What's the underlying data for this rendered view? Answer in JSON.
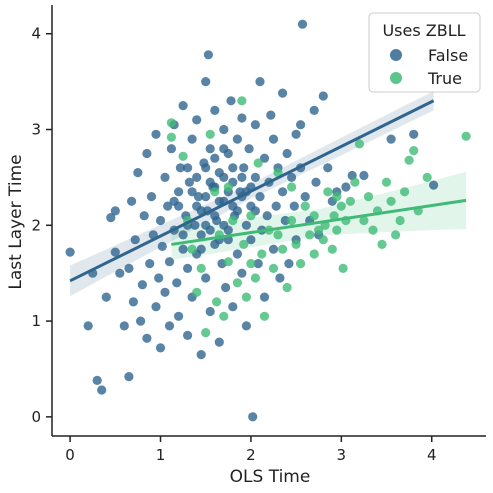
{
  "chart_data": {
    "type": "scatter",
    "title": "",
    "xlabel": "OLS  Time",
    "ylabel": "Last Layer Time",
    "xlim": [
      -0.2,
      4.6
    ],
    "ylim": [
      -0.2,
      4.3
    ],
    "xticks": [
      0,
      1,
      2,
      3,
      4
    ],
    "yticks": [
      0,
      1,
      2,
      3,
      4
    ],
    "grid": false,
    "legend": {
      "title": "Uses ZBLL",
      "placement": "top-right",
      "entries": [
        {
          "label": "False",
          "color": "#30658e"
        },
        {
          "label": "True",
          "color": "#3fbb77"
        }
      ]
    },
    "series": [
      {
        "name": "False",
        "color": "#30658e",
        "points": [
          [
            0.0,
            1.72
          ],
          [
            0.2,
            0.95
          ],
          [
            0.25,
            1.5
          ],
          [
            0.3,
            0.38
          ],
          [
            0.35,
            0.28
          ],
          [
            0.4,
            1.25
          ],
          [
            0.45,
            2.08
          ],
          [
            0.5,
            1.72
          ],
          [
            0.5,
            2.15
          ],
          [
            0.55,
            1.5
          ],
          [
            0.6,
            0.95
          ],
          [
            0.65,
            0.42
          ],
          [
            0.65,
            1.55
          ],
          [
            0.68,
            2.25
          ],
          [
            0.7,
            1.2
          ],
          [
            0.72,
            1.85
          ],
          [
            0.75,
            2.55
          ],
          [
            0.78,
            1.0
          ],
          [
            0.8,
            1.38
          ],
          [
            0.82,
            2.1
          ],
          [
            0.85,
            2.75
          ],
          [
            0.85,
            0.82
          ],
          [
            0.88,
            1.6
          ],
          [
            0.9,
            2.3
          ],
          [
            0.92,
            1.9
          ],
          [
            0.95,
            1.15
          ],
          [
            0.95,
            2.95
          ],
          [
            0.98,
            1.45
          ],
          [
            1.0,
            2.05
          ],
          [
            1.0,
            0.72
          ],
          [
            1.02,
            1.78
          ],
          [
            1.05,
            2.5
          ],
          [
            1.05,
            1.3
          ],
          [
            1.08,
            2.2
          ],
          [
            1.1,
            1.62
          ],
          [
            1.1,
            0.95
          ],
          [
            1.12,
            2.8
          ],
          [
            1.15,
            1.95
          ],
          [
            1.15,
            3.05
          ],
          [
            1.18,
            1.4
          ],
          [
            1.2,
            2.35
          ],
          [
            1.2,
            1.05
          ],
          [
            1.22,
            2.6
          ],
          [
            1.25,
            1.75
          ],
          [
            1.25,
            3.25
          ],
          [
            1.28,
            2.1
          ],
          [
            1.3,
            0.85
          ],
          [
            1.3,
            1.55
          ],
          [
            1.32,
            2.45
          ],
          [
            1.35,
            2.9
          ],
          [
            1.35,
            1.25
          ],
          [
            1.38,
            2.0
          ],
          [
            1.4,
            1.7
          ],
          [
            1.4,
            3.1
          ],
          [
            1.42,
            2.3
          ],
          [
            1.45,
            0.65
          ],
          [
            1.45,
            1.9
          ],
          [
            1.48,
            2.65
          ],
          [
            1.5,
            3.5
          ],
          [
            1.5,
            1.45
          ],
          [
            1.52,
            2.15
          ],
          [
            1.53,
            3.78
          ],
          [
            1.55,
            2.8
          ],
          [
            1.55,
            1.1
          ],
          [
            1.58,
            2.4
          ],
          [
            1.6,
            1.8
          ],
          [
            1.6,
            3.2
          ],
          [
            1.62,
            2.05
          ],
          [
            1.65,
            0.78
          ],
          [
            1.65,
            2.55
          ],
          [
            1.68,
            1.6
          ],
          [
            1.7,
            3.0
          ],
          [
            1.7,
            2.25
          ],
          [
            1.72,
            1.35
          ],
          [
            1.75,
            2.75
          ],
          [
            1.75,
            1.95
          ],
          [
            1.78,
            3.3
          ],
          [
            1.8,
            2.45
          ],
          [
            1.8,
            1.15
          ],
          [
            1.82,
            2.1
          ],
          [
            1.85,
            2.9
          ],
          [
            1.85,
            1.7
          ],
          [
            1.88,
            2.35
          ],
          [
            1.9,
            3.12
          ],
          [
            1.9,
            1.5
          ],
          [
            1.92,
            2.6
          ],
          [
            1.95,
            2.0
          ],
          [
            1.95,
            0.95
          ],
          [
            1.98,
            2.8
          ],
          [
            2.0,
            2.2
          ],
          [
            2.0,
            1.85
          ],
          [
            2.02,
            0.0
          ],
          [
            2.05,
            2.5
          ],
          [
            2.05,
            3.05
          ],
          [
            2.08,
            1.6
          ],
          [
            2.1,
            2.3
          ],
          [
            2.1,
            3.5
          ],
          [
            2.12,
            1.95
          ],
          [
            2.15,
            2.7
          ],
          [
            2.15,
            1.25
          ],
          [
            2.18,
            2.1
          ],
          [
            2.2,
            2.45
          ],
          [
            2.22,
            3.15
          ],
          [
            2.25,
            1.75
          ],
          [
            2.25,
            2.9
          ],
          [
            2.28,
            2.2
          ],
          [
            2.3,
            2.6
          ],
          [
            2.32,
            1.45
          ],
          [
            2.35,
            2.35
          ],
          [
            2.35,
            3.38
          ],
          [
            2.38,
            2.05
          ],
          [
            2.4,
            2.75
          ],
          [
            2.42,
            1.6
          ],
          [
            2.45,
            2.5
          ],
          [
            2.48,
            2.2
          ],
          [
            2.5,
            2.95
          ],
          [
            2.5,
            1.85
          ],
          [
            2.55,
            2.6
          ],
          [
            2.55,
            3.05
          ],
          [
            2.57,
            4.1
          ],
          [
            2.6,
            2.3
          ],
          [
            2.65,
            2.05
          ],
          [
            2.7,
            3.2
          ],
          [
            2.72,
            2.45
          ],
          [
            2.75,
            1.9
          ],
          [
            2.8,
            3.35
          ],
          [
            2.85,
            2.6
          ],
          [
            2.9,
            2.25
          ],
          [
            2.95,
            2.35
          ],
          [
            3.05,
            2.4
          ],
          [
            3.12,
            2.52
          ],
          [
            3.25,
            2.52
          ],
          [
            3.55,
            2.9
          ],
          [
            3.8,
            2.95
          ],
          [
            4.02,
            2.42
          ],
          [
            1.3,
            2.0
          ],
          [
            1.4,
            2.2
          ],
          [
            1.5,
            2.0
          ],
          [
            1.5,
            2.3
          ],
          [
            1.6,
            2.1
          ],
          [
            1.6,
            2.4
          ],
          [
            1.7,
            2.0
          ],
          [
            1.7,
            2.5
          ],
          [
            1.8,
            2.2
          ],
          [
            1.8,
            2.6
          ],
          [
            1.9,
            2.3
          ],
          [
            1.4,
            2.5
          ],
          [
            1.2,
            2.2
          ],
          [
            1.3,
            2.6
          ],
          [
            1.6,
            2.7
          ],
          [
            1.7,
            2.8
          ],
          [
            1.5,
            2.6
          ],
          [
            1.9,
            2.5
          ],
          [
            2.0,
            2.4
          ],
          [
            1.45,
            2.15
          ],
          [
            1.55,
            2.45
          ],
          [
            1.65,
            2.25
          ],
          [
            1.75,
            2.35
          ],
          [
            1.35,
            2.35
          ],
          [
            1.25,
            1.9
          ],
          [
            1.15,
            2.25
          ],
          [
            1.85,
            2.15
          ],
          [
            1.95,
            2.35
          ],
          [
            2.05,
            2.15
          ],
          [
            1.55,
            1.95
          ],
          [
            1.45,
            1.75
          ],
          [
            1.75,
            1.85
          ],
          [
            1.65,
            1.85
          ]
        ]
      },
      {
        "name": "True",
        "color": "#3fbb77",
        "points": [
          [
            1.12,
            3.07
          ],
          [
            1.12,
            2.92
          ],
          [
            1.25,
            2.72
          ],
          [
            1.3,
            2.05
          ],
          [
            1.35,
            1.75
          ],
          [
            1.4,
            1.3
          ],
          [
            1.45,
            1.55
          ],
          [
            1.5,
            0.88
          ],
          [
            1.55,
            2.95
          ],
          [
            1.6,
            2.35
          ],
          [
            1.62,
            1.2
          ],
          [
            1.65,
            1.9
          ],
          [
            1.7,
            1.05
          ],
          [
            1.75,
            1.62
          ],
          [
            1.8,
            2.05
          ],
          [
            1.85,
            1.4
          ],
          [
            1.9,
            3.3
          ],
          [
            1.92,
            1.8
          ],
          [
            1.95,
            1.25
          ],
          [
            2.0,
            2.1
          ],
          [
            2.05,
            1.45
          ],
          [
            2.08,
            2.65
          ],
          [
            2.12,
            1.7
          ],
          [
            2.15,
            1.05
          ],
          [
            2.2,
            1.95
          ],
          [
            2.25,
            1.55
          ],
          [
            2.3,
            2.55
          ],
          [
            2.35,
            1.75
          ],
          [
            2.4,
            1.35
          ],
          [
            2.45,
            2.05
          ],
          [
            2.5,
            1.8
          ],
          [
            2.55,
            1.6
          ],
          [
            2.6,
            2.2
          ],
          [
            2.65,
            1.9
          ],
          [
            2.7,
            2.1
          ],
          [
            2.75,
            1.95
          ],
          [
            2.8,
            1.85
          ],
          [
            2.82,
            2.0
          ],
          [
            2.85,
            2.35
          ],
          [
            2.9,
            1.75
          ],
          [
            2.92,
            2.1
          ],
          [
            2.95,
            1.95
          ],
          [
            3.0,
            2.2
          ],
          [
            3.02,
            1.55
          ],
          [
            3.05,
            2.05
          ],
          [
            3.1,
            2.25
          ],
          [
            3.15,
            2.45
          ],
          [
            3.2,
            2.85
          ],
          [
            3.25,
            2.05
          ],
          [
            3.3,
            2.3
          ],
          [
            3.35,
            1.95
          ],
          [
            3.4,
            2.15
          ],
          [
            3.45,
            1.8
          ],
          [
            3.5,
            2.45
          ],
          [
            3.55,
            2.25
          ],
          [
            3.6,
            1.9
          ],
          [
            3.65,
            2.05
          ],
          [
            3.7,
            2.35
          ],
          [
            3.75,
            2.68
          ],
          [
            3.8,
            2.78
          ],
          [
            3.85,
            2.15
          ],
          [
            3.95,
            2.5
          ],
          [
            4.38,
            2.93
          ],
          [
            1.75,
            2.4
          ],
          [
            2.0,
            1.6
          ],
          [
            2.3,
            1.9
          ],
          [
            2.45,
            2.4
          ],
          [
            2.7,
            1.7
          ],
          [
            2.95,
            2.3
          ]
        ]
      }
    ],
    "regression": [
      {
        "series": "False",
        "color": "#30658e",
        "x": [
          0.0,
          4.02
        ],
        "y": [
          1.42,
          3.3
        ],
        "ci_start": 0.16,
        "ci_end": 0.1
      },
      {
        "series": "True",
        "color": "#3fbb77",
        "x": [
          1.12,
          4.38
        ],
        "y": [
          1.8,
          2.26
        ],
        "ci_start": 0.16,
        "ci_end": 0.3
      }
    ]
  }
}
